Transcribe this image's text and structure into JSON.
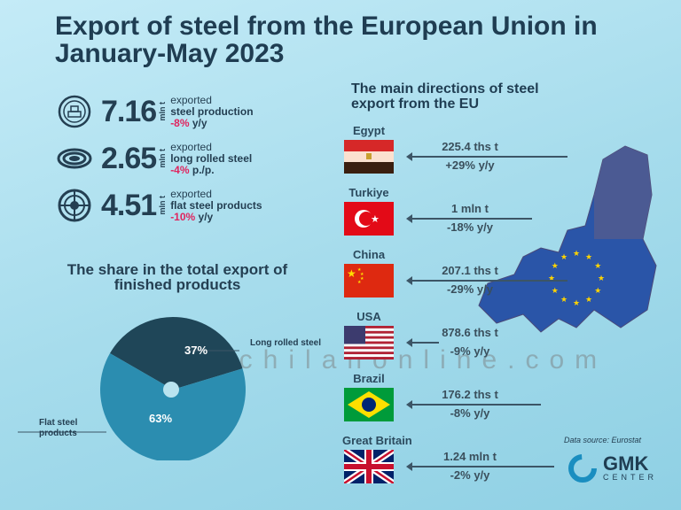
{
  "title": "Export of steel from the European Union in January-May 2023",
  "stats": [
    {
      "value": "7.16",
      "unit": "mln t",
      "line1": "exported",
      "line2": "steel production",
      "change": "-8%",
      "change_suffix": " y/y",
      "icon": "steel-bars-icon"
    },
    {
      "value": "2.65",
      "unit": "mln t",
      "line1": "exported",
      "line2": "long rolled steel",
      "change": "-4%",
      "change_suffix": " p./p.",
      "icon": "coil-icon"
    },
    {
      "value": "4.51",
      "unit": "mln t",
      "line1": "exported",
      "line2": "flat steel products",
      "change": "-10%",
      "change_suffix": " y/y",
      "icon": "flat-coil-icon"
    }
  ],
  "directions_title": "The main directions of steel export from the EU",
  "directions": [
    {
      "country": "Egypt",
      "volume": "225.4 ths t",
      "change": "+29% y/y",
      "positive": true
    },
    {
      "country": "Turkiye",
      "volume": "1 mln t",
      "change": "-18% y/y",
      "positive": false
    },
    {
      "country": "China",
      "volume": "207.1 ths t",
      "change": "-29% y/y",
      "positive": false
    },
    {
      "country": "USA",
      "volume": "878.6 ths t",
      "change": "-9% y/y",
      "positive": false
    },
    {
      "country": "Brazil",
      "volume": "176.2 ths t",
      "change": "-8% y/y",
      "positive": false
    },
    {
      "country": "Great Britain",
      "volume": "1.24 mln t",
      "change": "-2% y/y",
      "positive": false
    }
  ],
  "data_source": "Data source: Eurostat",
  "logo": {
    "main": "GMK",
    "sub": "CENTER"
  },
  "watermark": "www.chilanonline.com",
  "colors": {
    "long": "#1f4658",
    "flat": "#2b8db0",
    "red": "#e0245e",
    "green": "#3b9a1d"
  },
  "chart_data": {
    "type": "pie",
    "title": "The share in the total export of finished products",
    "slices": [
      {
        "label": "Long rolled steel",
        "value": 37,
        "display": "37%"
      },
      {
        "label": "Flat steel products",
        "value": 63,
        "display": "63%"
      }
    ]
  }
}
